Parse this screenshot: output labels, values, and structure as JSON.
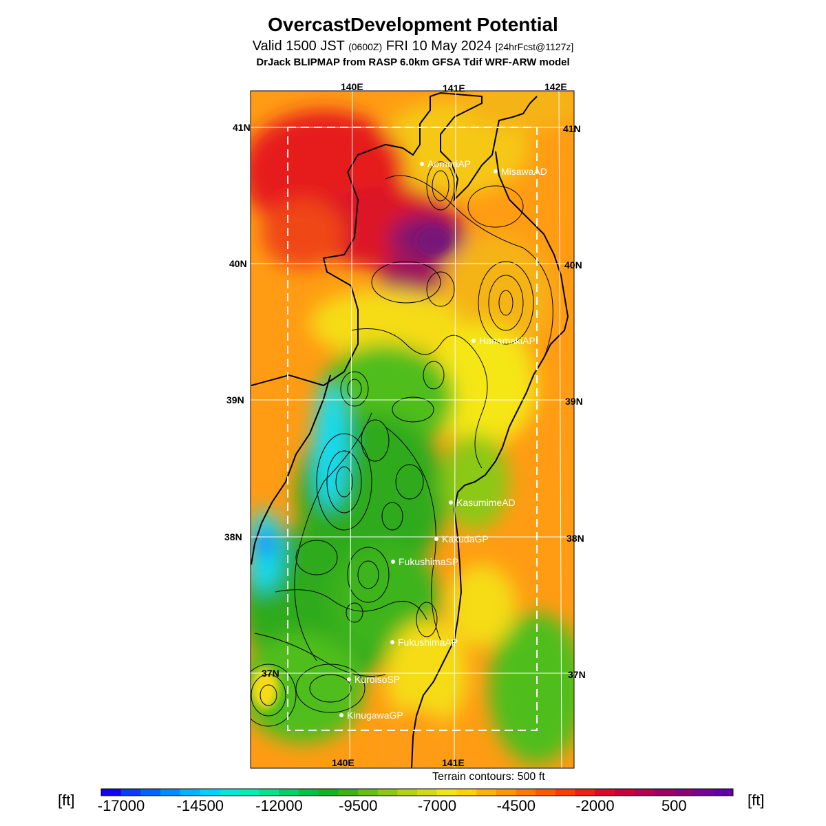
{
  "title": "OvercastDevelopment Potential",
  "subtitle": {
    "valid": "Valid 1500 JST",
    "zulu": "(0600Z)",
    "date": "FRI 10 May 2024",
    "forecast": "[24hrFcst@1127z]"
  },
  "source_line": "DrJack BLIPMAP from RASP 6.0km GFSA Tdif WRF-ARW model",
  "axes": {
    "lon_top": [
      "140E",
      "141E",
      "142E"
    ],
    "lon_bottom": [
      "140E",
      "141E"
    ],
    "lat_left": [
      "41N",
      "40N",
      "39N",
      "38N",
      "37N"
    ],
    "lat_right": [
      "41N",
      "40N",
      "39N",
      "38N",
      "37N"
    ]
  },
  "stations": [
    {
      "name": "AomoriAP"
    },
    {
      "name": "MisawaAD"
    },
    {
      "name": "HanamakiAP"
    },
    {
      "name": "KasumimeAD"
    },
    {
      "name": "KakudaGP"
    },
    {
      "name": "FukushimaSP"
    },
    {
      "name": "FukushimaAP"
    },
    {
      "name": "KuroisoSP"
    },
    {
      "name": "KinugawaGP"
    }
  ],
  "terrain_note": "Terrain contours: 500 ft",
  "colorbar": {
    "unit": "[ft]",
    "tick_labels": [
      "-17000",
      "-14500",
      "-12000",
      "-9500",
      "-7000",
      "-4500",
      "-2000",
      "500"
    ],
    "colors": [
      "#1400ff",
      "#0a3cff",
      "#0064ff",
      "#008cff",
      "#00b4ff",
      "#00d2ff",
      "#00e6dc",
      "#00f0b4",
      "#00e68c",
      "#00d264",
      "#00c346",
      "#14b41e",
      "#3cb414",
      "#64be14",
      "#8cc814",
      "#b4d214",
      "#d2dc14",
      "#f0e614",
      "#ffd200",
      "#ffb400",
      "#ff9600",
      "#ff7800",
      "#ff5a00",
      "#ff3c00",
      "#f01e14",
      "#dc0a28",
      "#c8003c",
      "#b40050",
      "#a00064",
      "#8c0078",
      "#780096",
      "#6400aa"
    ]
  },
  "colors": {
    "sea_orange": "#ff9c14",
    "red": "#e61e1e",
    "purple": "#82146e",
    "yellow": "#f5e614",
    "green": "#2daa1e",
    "cyan": "#14dcf0",
    "blue": "#1464ff"
  }
}
